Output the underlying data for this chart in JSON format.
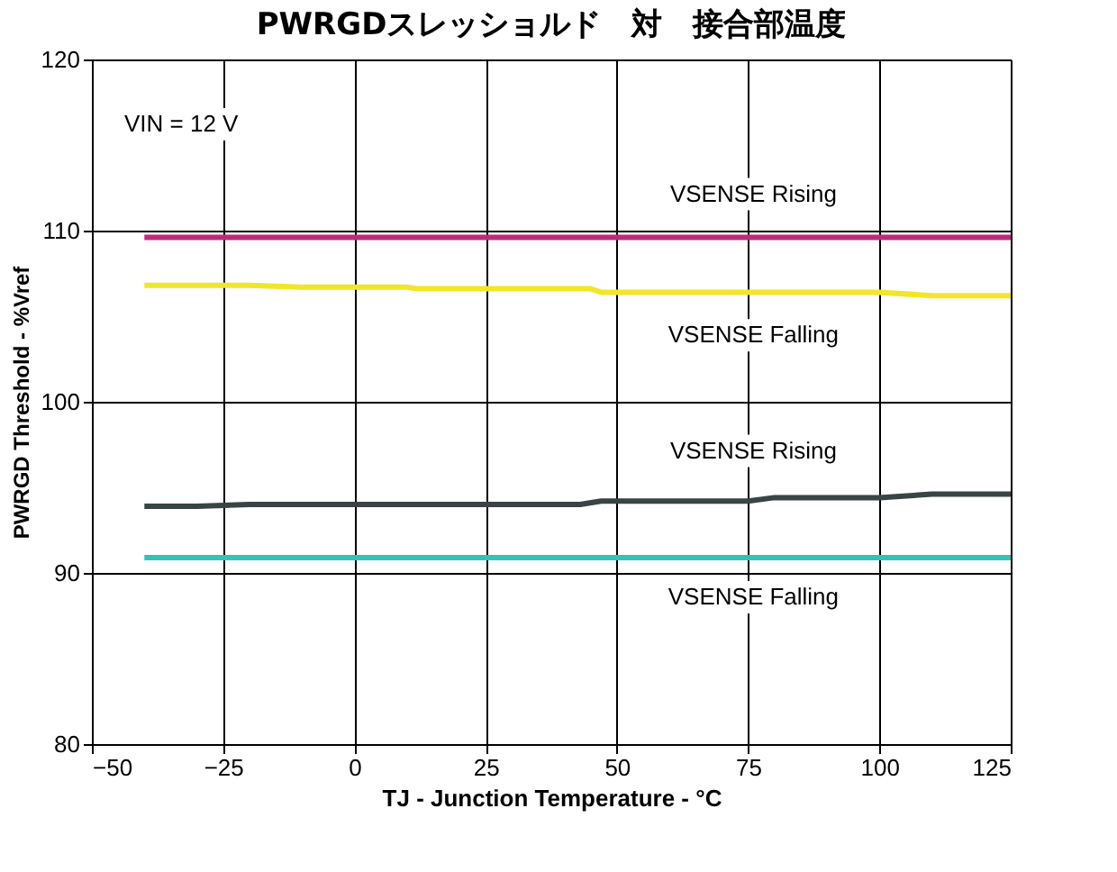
{
  "chart_data": {
    "type": "line",
    "title": "PWRGDスレッショルド　対　接合部温度",
    "xlabel": "TJ - Junction Temperature - °C",
    "ylabel": "PWRGD Threshold - %Vref",
    "annotations": [
      "VIN = 12 V"
    ],
    "xlim": [
      -50,
      125
    ],
    "xticks": [
      {
        "value": -50,
        "label": "−50"
      },
      {
        "value": -25,
        "label": "−25"
      },
      0,
      25,
      50,
      75,
      100,
      125
    ],
    "ylim": [
      80,
      120
    ],
    "yticks": [
      80,
      90,
      100,
      110,
      120
    ],
    "grid": true,
    "marker": "none",
    "line_style": "solid",
    "series": [
      {
        "name": "VSENSE Rising",
        "color": "#c0287f",
        "x": [
          -40,
          125
        ],
        "values": [
          109.6,
          109.6
        ]
      },
      {
        "name": "VSENSE Falling",
        "color": "#f2e62a",
        "x": [
          -40,
          -20,
          -10,
          10,
          12,
          45,
          47,
          100,
          110,
          125
        ],
        "values": [
          106.8,
          106.8,
          106.7,
          106.7,
          106.6,
          106.6,
          106.4,
          106.4,
          106.2,
          106.2
        ]
      },
      {
        "name": "VSENSE Rising",
        "color": "#3a4444",
        "x": [
          -40,
          -30,
          -20,
          43,
          47,
          75,
          80,
          100,
          110,
          125
        ],
        "values": [
          93.9,
          93.9,
          94.0,
          94.0,
          94.2,
          94.2,
          94.4,
          94.4,
          94.6,
          94.6
        ]
      },
      {
        "name": "VSENSE Falling",
        "color": "#2ec4bc",
        "x": [
          -40,
          125
        ],
        "values": [
          90.9,
          90.9
        ]
      }
    ]
  }
}
